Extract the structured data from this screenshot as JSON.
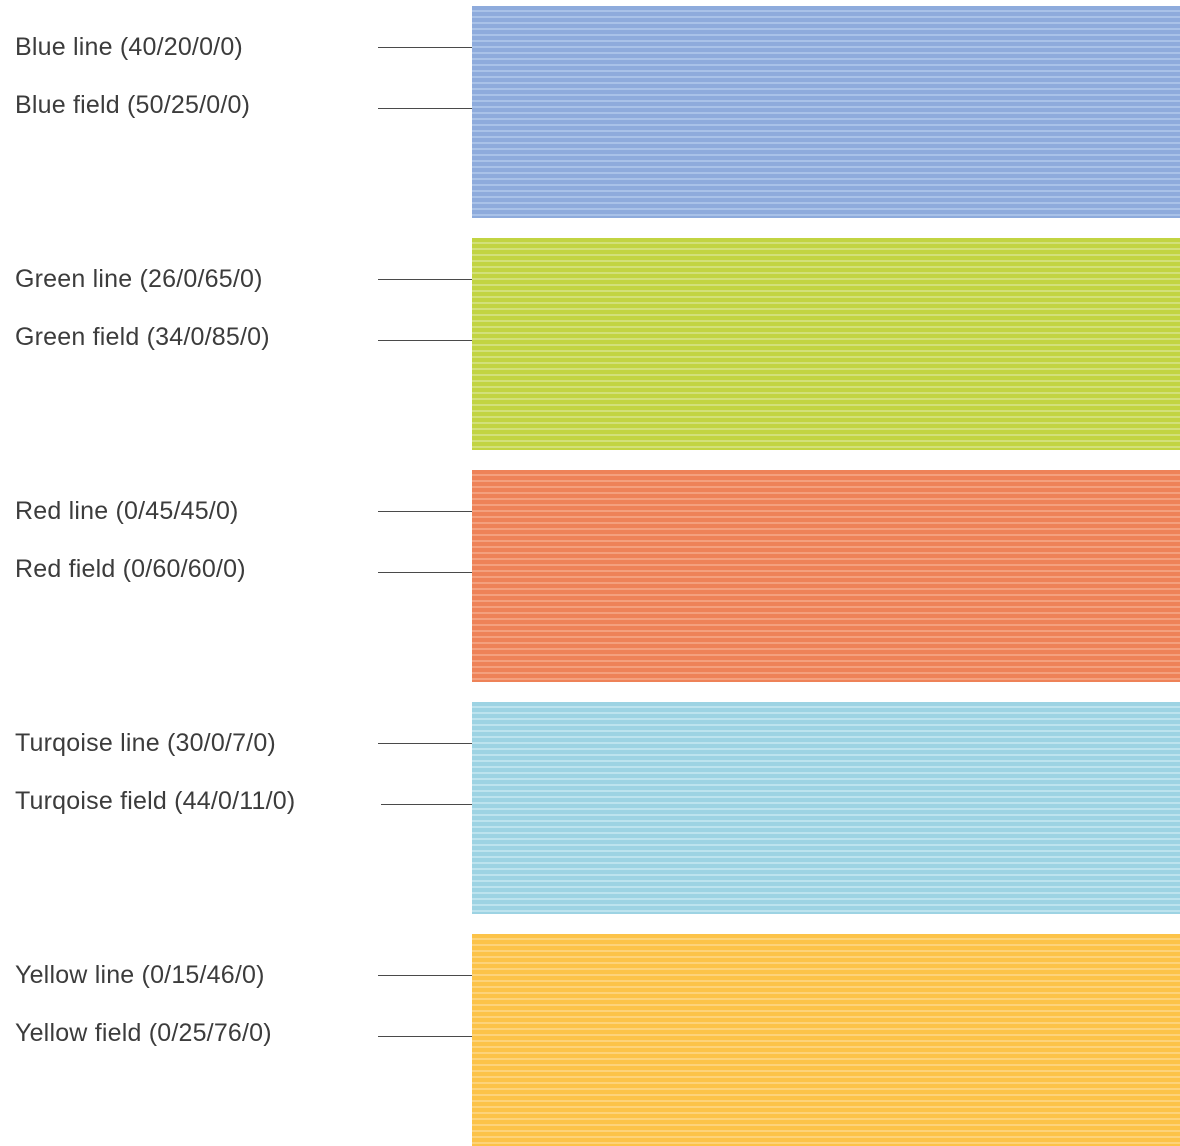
{
  "groups": [
    {
      "id": "blue",
      "line_label": "Blue line (40/20/0/0)",
      "field_label": "Blue field (50/25/0/0)",
      "field_color": "#8eabdc",
      "line_color": "#a9c2e8"
    },
    {
      "id": "green",
      "line_label": "Green line (26/0/65/0)",
      "field_label": "Green field (34/0/85/0)",
      "field_color": "#c2d442",
      "line_color": "#d2e07a"
    },
    {
      "id": "red",
      "line_label": "Red line (0/45/45/0)",
      "field_label": "Red field (0/60/60/0)",
      "field_color": "#ee8258",
      "line_color": "#f4a07e"
    },
    {
      "id": "turqoise",
      "line_label": "Turqoise line (30/0/7/0)",
      "field_label": "Turqoise field (44/0/11/0)",
      "field_color": "#9dd3e3",
      "line_color": "#bde3ee"
    },
    {
      "id": "yellow",
      "line_label": "Yellow line (0/15/46/0)",
      "field_label": "Yellow field (0/25/76/0)",
      "field_color": "#fcc348",
      "line_color": "#fdd37a"
    }
  ]
}
